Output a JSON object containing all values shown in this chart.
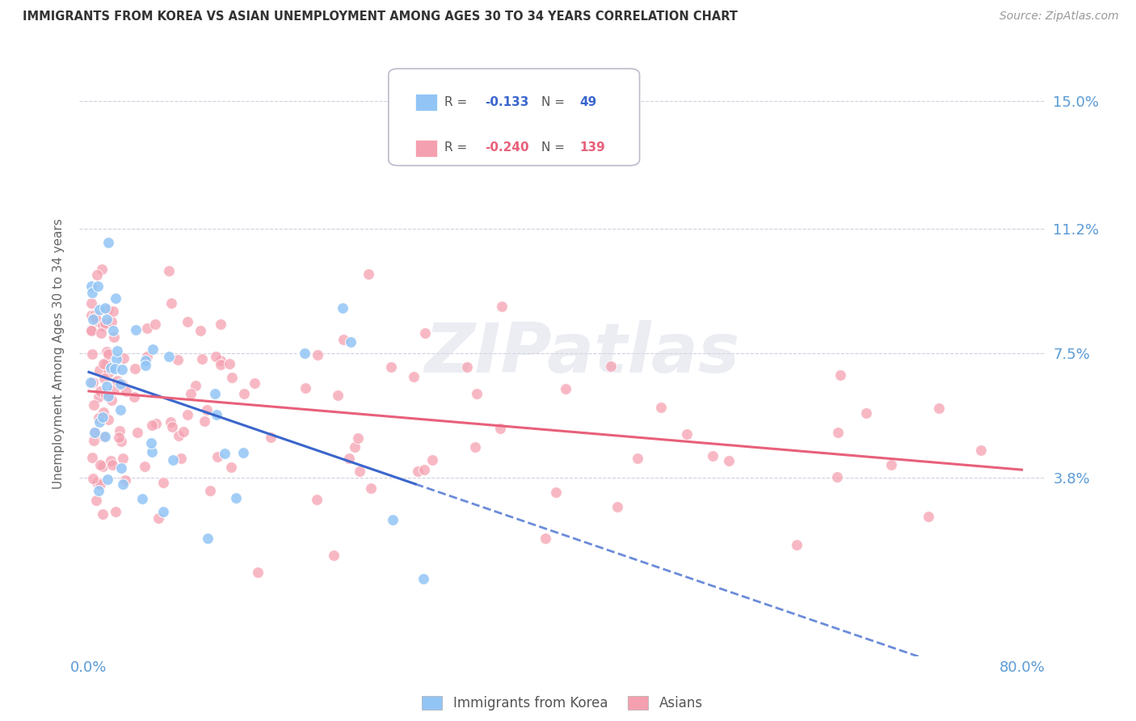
{
  "title": "IMMIGRANTS FROM KOREA VS ASIAN UNEMPLOYMENT AMONG AGES 30 TO 34 YEARS CORRELATION CHART",
  "source": "Source: ZipAtlas.com",
  "ylabel": "Unemployment Among Ages 30 to 34 years",
  "xlim": [
    -0.008,
    0.82
  ],
  "ylim": [
    -0.015,
    0.165
  ],
  "xtick_positions": [
    0.0,
    0.1,
    0.2,
    0.3,
    0.4,
    0.5,
    0.6,
    0.7,
    0.8
  ],
  "xticklabels": [
    "0.0%",
    "",
    "",
    "",
    "",
    "",
    "",
    "",
    "80.0%"
  ],
  "right_ytick_positions": [
    0.15,
    0.112,
    0.075,
    0.038
  ],
  "right_yticklabels": [
    "15.0%",
    "11.2%",
    "7.5%",
    "3.8%"
  ],
  "korea_R": -0.133,
  "korea_N": 49,
  "asian_R": -0.24,
  "asian_N": 139,
  "korea_color": "#92c5f5",
  "asian_color": "#f5a0b0",
  "korea_line_color": "#3a66cc",
  "asian_line_color": "#e8607a",
  "watermark": "ZIPatlas",
  "background_color": "#ffffff",
  "grid_color": "#d0d0e0",
  "tick_label_color": "#5b9bd5",
  "title_color": "#333333",
  "ylabel_color": "#666666",
  "source_color": "#999999"
}
